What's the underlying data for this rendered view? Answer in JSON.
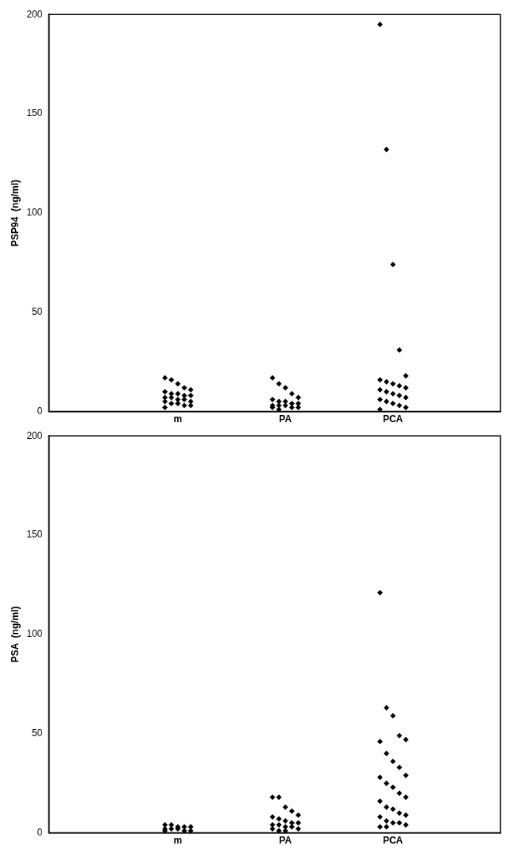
{
  "chart_data": [
    {
      "type": "scatter",
      "ylabel": "PSP94  (ng/ml)",
      "categories": [
        "m",
        "PA",
        "PCA"
      ],
      "ylim": [
        0,
        200
      ],
      "yticks": [
        0,
        50,
        100,
        150,
        200
      ],
      "grid": false,
      "legend": false,
      "marker": "diamond",
      "series": [
        {
          "color": "#000000",
          "x": [
            "m",
            "m",
            "m",
            "m",
            "m",
            "m",
            "m",
            "m",
            "m",
            "m",
            "m",
            "m",
            "m",
            "m",
            "m",
            "m",
            "m",
            "m",
            "m",
            "m",
            "m"
          ],
          "values": [
            17,
            16,
            14,
            12,
            11,
            10,
            9,
            9,
            8,
            8,
            7,
            7,
            6,
            6,
            5,
            5,
            4,
            4,
            3,
            3,
            2
          ]
        },
        {
          "color": "#000000",
          "x": [
            "PA",
            "PA",
            "PA",
            "PA",
            "PA",
            "PA",
            "PA",
            "PA",
            "PA",
            "PA",
            "PA",
            "PA",
            "PA",
            "PA",
            "PA",
            "PA",
            "PA"
          ],
          "values": [
            17,
            14,
            12,
            9,
            7,
            6,
            5,
            5,
            4,
            4,
            3,
            3,
            3,
            2,
            2,
            2,
            1
          ]
        },
        {
          "color": "#000000",
          "x": [
            "PCA",
            "PCA",
            "PCA",
            "PCA",
            "PCA",
            "PCA",
            "PCA",
            "PCA",
            "PCA",
            "PCA",
            "PCA",
            "PCA",
            "PCA",
            "PCA",
            "PCA",
            "PCA",
            "PCA",
            "PCA",
            "PCA",
            "PCA",
            "PCA"
          ],
          "values": [
            195,
            132,
            74,
            31,
            18,
            16,
            15,
            14,
            13,
            12,
            11,
            10,
            9,
            8,
            7,
            6,
            5,
            4,
            3,
            2,
            1
          ]
        }
      ]
    },
    {
      "type": "scatter",
      "ylabel": "PSA  (ng/ml)",
      "categories": [
        "m",
        "PA",
        "PCA"
      ],
      "ylim": [
        0,
        200
      ],
      "yticks": [
        0,
        50,
        100,
        150,
        200
      ],
      "grid": false,
      "legend": false,
      "marker": "diamond",
      "series": [
        {
          "color": "#000000",
          "x": [
            "m",
            "m",
            "m",
            "m",
            "m",
            "m",
            "m",
            "m",
            "m",
            "m",
            "m"
          ],
          "values": [
            4,
            4,
            3,
            3,
            3,
            2,
            2,
            2,
            1,
            1,
            1
          ]
        },
        {
          "color": "#000000",
          "x": [
            "PA",
            "PA",
            "PA",
            "PA",
            "PA",
            "PA",
            "PA",
            "PA",
            "PA",
            "PA",
            "PA",
            "PA",
            "PA",
            "PA",
            "PA",
            "PA",
            "PA",
            "PA"
          ],
          "values": [
            18,
            18,
            13,
            11,
            9,
            8,
            7,
            6,
            5,
            5,
            4,
            4,
            3,
            3,
            2,
            2,
            1,
            1
          ]
        },
        {
          "color": "#000000",
          "x": [
            "PCA",
            "PCA",
            "PCA",
            "PCA",
            "PCA",
            "PCA",
            "PCA",
            "PCA",
            "PCA",
            "PCA",
            "PCA",
            "PCA",
            "PCA",
            "PCA",
            "PCA",
            "PCA",
            "PCA",
            "PCA",
            "PCA",
            "PCA",
            "PCA",
            "PCA",
            "PCA",
            "PCA",
            "PCA",
            "PCA",
            "PCA"
          ],
          "values": [
            121,
            63,
            59,
            49,
            47,
            46,
            40,
            36,
            33,
            29,
            28,
            25,
            23,
            20,
            18,
            16,
            13,
            12,
            10,
            9,
            8,
            6,
            5,
            5,
            4,
            3,
            3
          ]
        }
      ]
    }
  ]
}
